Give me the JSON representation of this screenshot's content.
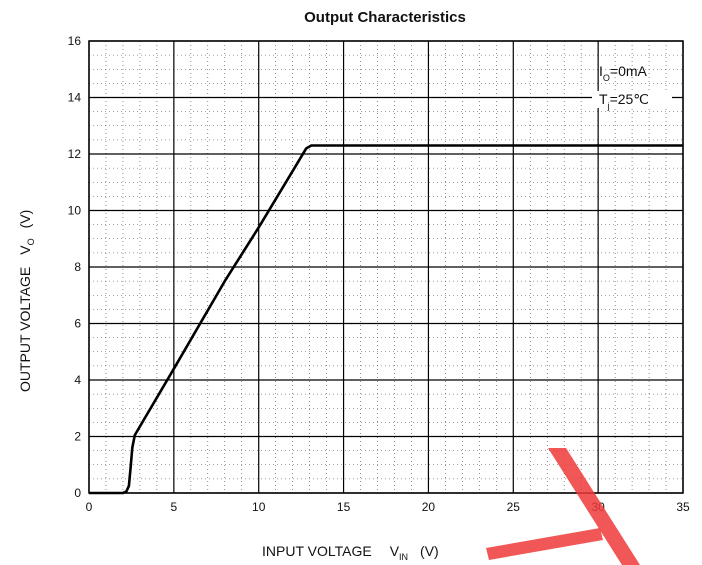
{
  "chart_data": {
    "type": "line",
    "title": "Output Characteristics",
    "xlabel": {
      "prefix": "INPUT VOLTAGE",
      "symbol": "V",
      "subscript": "IN",
      "unit": "(V)"
    },
    "ylabel": {
      "prefix": "OUTPUT VOLTAGE",
      "symbol": "V",
      "subscript": "O",
      "unit": "(V)"
    },
    "xlim": [
      0,
      35
    ],
    "ylim": [
      0,
      16
    ],
    "x_ticks": [
      0,
      5,
      10,
      15,
      20,
      25,
      30,
      35
    ],
    "y_ticks": [
      0,
      2,
      4,
      6,
      8,
      10,
      12,
      14,
      16
    ],
    "grid": true,
    "annotations": [
      {
        "symbol": "I",
        "subscript": "O",
        "text": "=0mA"
      },
      {
        "symbol": "T",
        "subscript": "j",
        "text": "=25℃"
      }
    ],
    "series": [
      {
        "color": "#000000",
        "points": [
          [
            0,
            0
          ],
          [
            2.0,
            0
          ],
          [
            2.2,
            0.05
          ],
          [
            2.35,
            0.25
          ],
          [
            2.45,
            0.9
          ],
          [
            2.55,
            1.6
          ],
          [
            2.7,
            2.05
          ],
          [
            5.0,
            4.4
          ],
          [
            8.0,
            7.5
          ],
          [
            10.0,
            9.4
          ],
          [
            12.2,
            11.6
          ],
          [
            12.8,
            12.2
          ],
          [
            13.1,
            12.3
          ],
          [
            35,
            12.3
          ]
        ]
      }
    ]
  },
  "colors": {
    "grid": "#000000",
    "line": "#000000",
    "watermark": "#f03a3a"
  }
}
